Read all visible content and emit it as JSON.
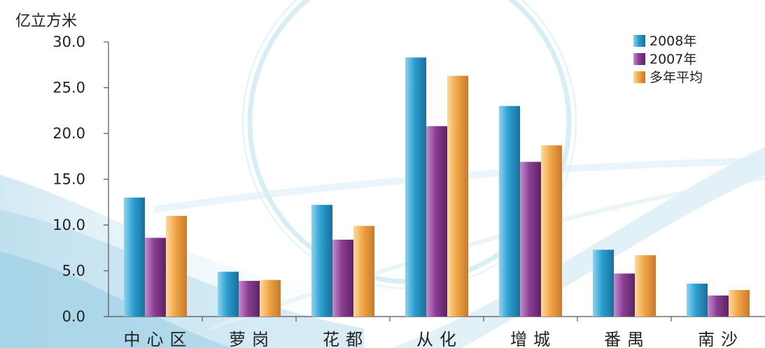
{
  "chart_data": {
    "type": "bar",
    "title": "",
    "unit_label": "亿立方米",
    "xlabel": "",
    "ylabel": "",
    "ylim": [
      0,
      30
    ],
    "yticks": [
      "0.0",
      "5.0",
      "10.0",
      "15.0",
      "20.0",
      "25.0",
      "30.0"
    ],
    "categories": [
      "中心区",
      "萝岗",
      "花都",
      "从化",
      "增城",
      "番禺",
      "南沙"
    ],
    "series": [
      {
        "name": "2008年",
        "color": "#2a9fd0",
        "values": [
          13.0,
          4.9,
          12.2,
          28.3,
          23.0,
          7.3,
          3.6
        ]
      },
      {
        "name": "2007年",
        "color": "#8a3d92",
        "values": [
          8.6,
          3.9,
          8.4,
          20.8,
          16.9,
          4.7,
          2.3
        ]
      },
      {
        "name": "多年平均",
        "color": "#f0a645",
        "values": [
          11.0,
          4.0,
          9.9,
          26.3,
          18.7,
          6.7,
          2.9
        ]
      }
    ],
    "grid": false,
    "legend_position": "top-right"
  }
}
